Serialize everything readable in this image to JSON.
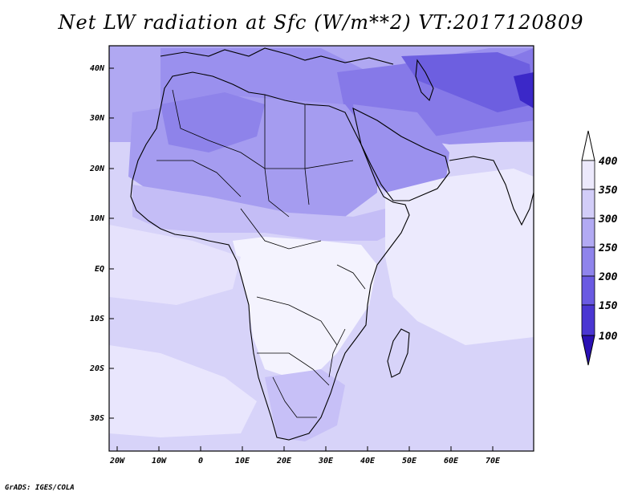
{
  "title": "Net LW radiation at Sfc (W/m**2) VT:2017120809",
  "footer": "GrADS: IGES/COLA",
  "map": {
    "lat_ticks": [
      "40N",
      "30N",
      "20N",
      "10N",
      "EQ",
      "10S",
      "20S",
      "30S"
    ],
    "lon_ticks": [
      "20W",
      "10W",
      "0",
      "10E",
      "20E",
      "30E",
      "40E",
      "50E",
      "60E",
      "70E"
    ]
  },
  "colorbar": {
    "levels": [
      "100",
      "150",
      "200",
      "250",
      "300",
      "350",
      "400"
    ],
    "colors": [
      "#2a10b4",
      "#4a36d2",
      "#6a5ae2",
      "#8f84ec",
      "#b2aaf3",
      "#d2cdf8",
      "#ece9fc"
    ]
  }
}
